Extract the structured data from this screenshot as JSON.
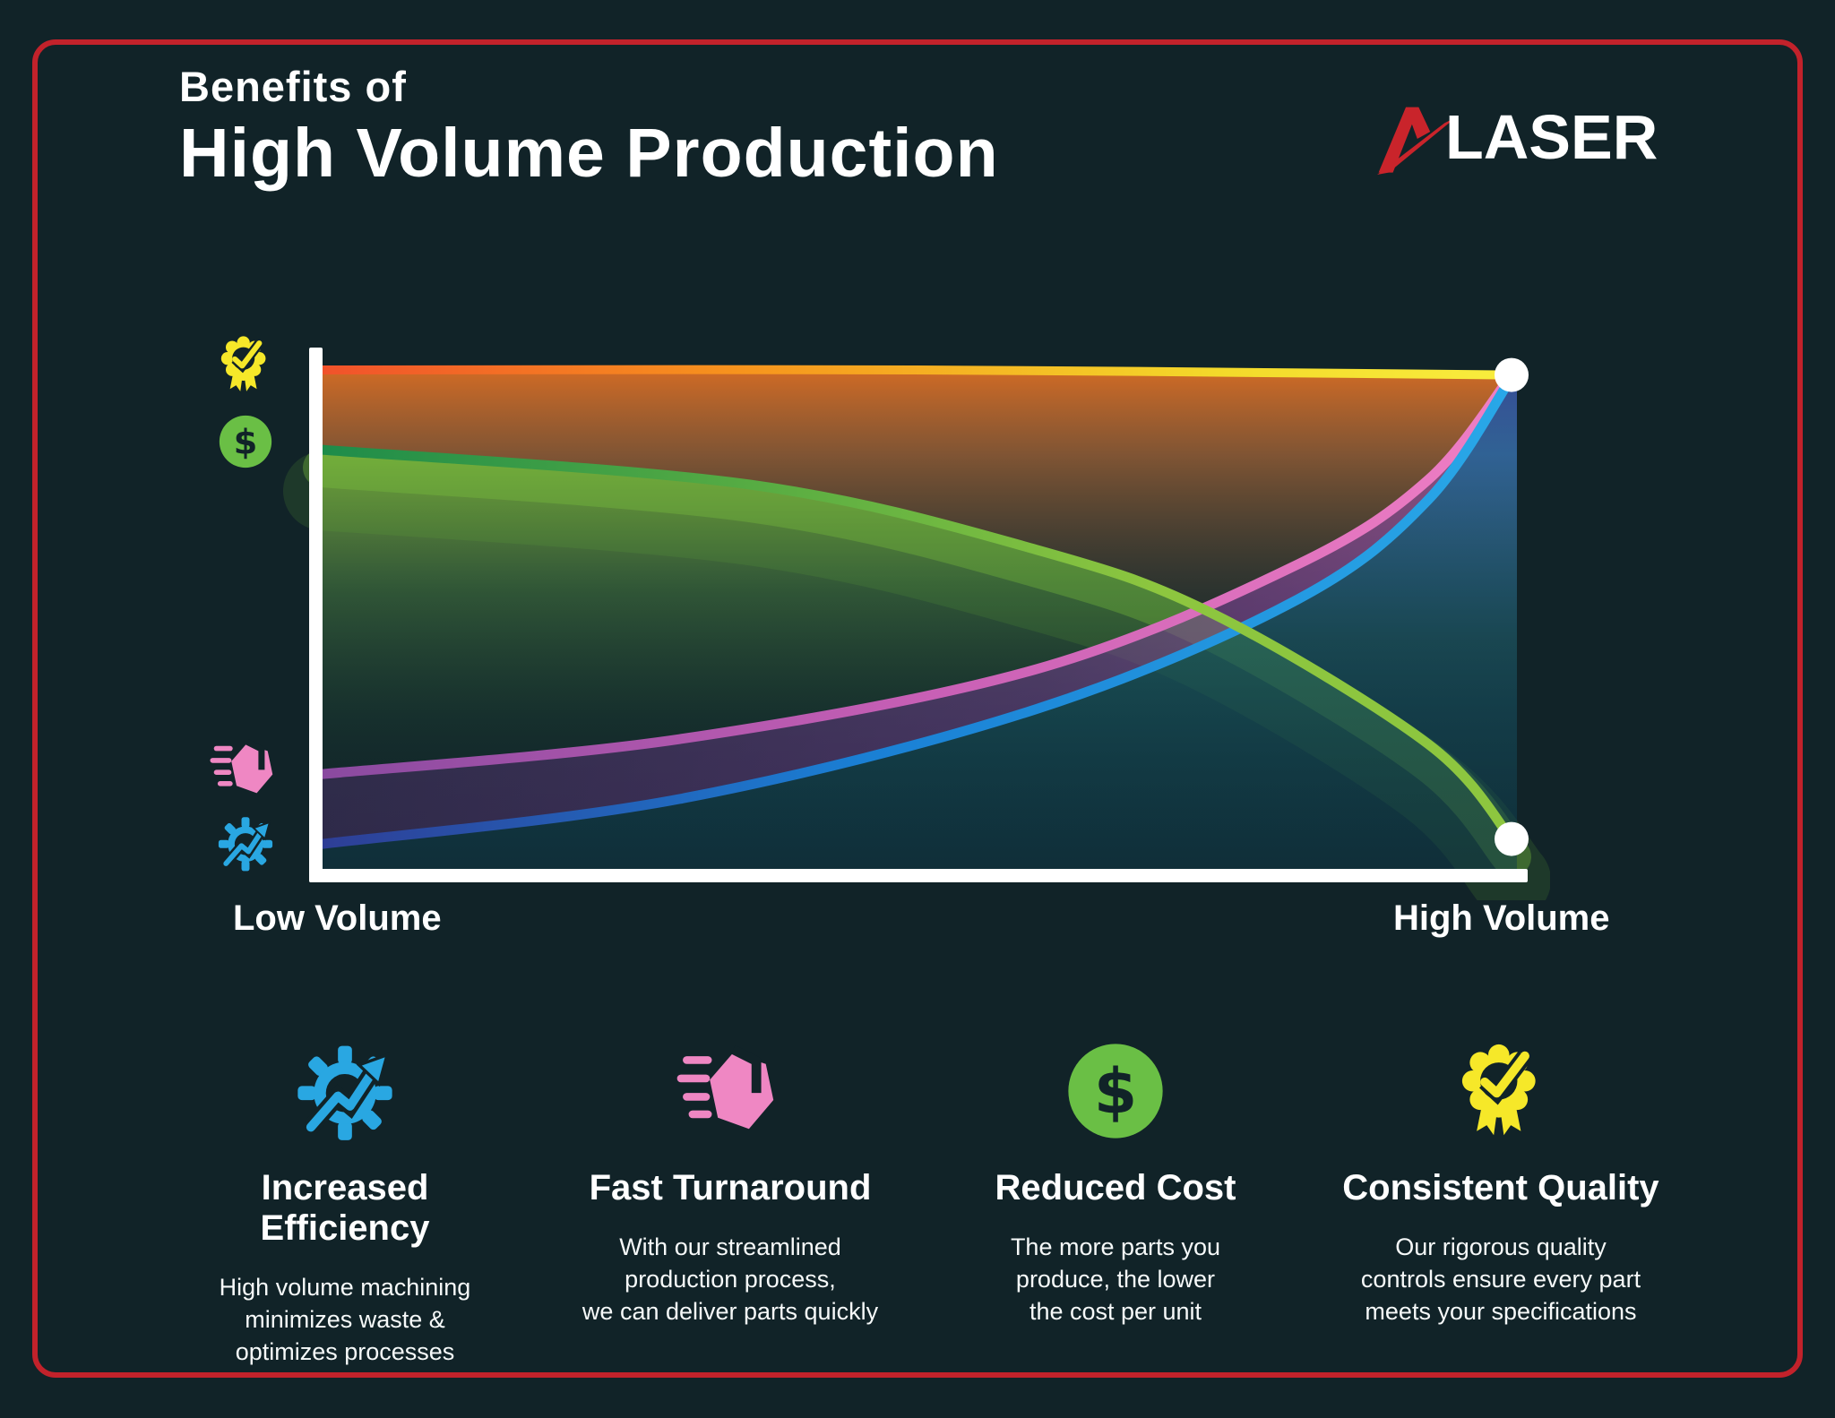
{
  "page": {
    "background": "#112328",
    "border_color": "#c2222b"
  },
  "header": {
    "title_line1": "Benefits of",
    "title_line2": "High Volume Production"
  },
  "logo": {
    "mark": "red-a-swoosh",
    "text": "LASER",
    "accent_color": "#c9242b",
    "text_color": "#ffffff"
  },
  "chart": {
    "y_axis_icons": [
      {
        "icon": "badge-icon",
        "series": "Consistent Quality",
        "color": "#f6e829"
      },
      {
        "icon": "dollar-icon",
        "series": "Reduced Cost",
        "color": "#6abf45"
      },
      {
        "icon": "fast-box-icon",
        "series": "Fast Turnaround",
        "color": "#ef87c3"
      },
      {
        "icon": "gear-icon",
        "series": "Increased Efficiency",
        "color": "#29a7e2"
      }
    ]
  },
  "chart_data": {
    "type": "line",
    "title": "Benefits of High Volume Production",
    "xlabel_left": "Low Volume",
    "xlabel_right": "High Volume",
    "x_range": [
      0,
      1
    ],
    "y_range": [
      0,
      100
    ],
    "grid": false,
    "legend_position": "icons-on-y-axis",
    "axis_color": "#ffffff",
    "marker_color": "#ffffff",
    "marker_radius": 19,
    "series": [
      {
        "id": "quality",
        "name": "Consistent Quality",
        "icon": "badge-icon",
        "trend": "flat-high",
        "points": [
          [
            0,
            100
          ],
          [
            0.5,
            100
          ],
          [
            1,
            99
          ]
        ],
        "stroke_width": 10,
        "stroke_stops": [
          [
            "0%",
            "#f1522b"
          ],
          [
            "35%",
            "#f7941d"
          ],
          [
            "75%",
            "#f3d92a"
          ],
          [
            "100%",
            "#f9ee3e"
          ]
        ],
        "fill": "under",
        "fill_stops": [
          [
            "0%",
            "rgba(233,115,35,0.92)"
          ],
          [
            "18%",
            "rgba(172,104,56,0.72)"
          ],
          [
            "45%",
            "rgba(96,82,60,0.34)"
          ],
          [
            "70%",
            "rgba(42,48,48,0.1)"
          ],
          [
            "100%",
            "rgba(20,35,40,0)"
          ]
        ],
        "end_marker": true
      },
      {
        "id": "cost",
        "name": "Reduced Cost",
        "icon": "dollar-icon",
        "trend": "decreasing",
        "points": [
          [
            0,
            84
          ],
          [
            0.36,
            77
          ],
          [
            0.6,
            64
          ],
          [
            0.75,
            51
          ],
          [
            0.93,
            25
          ],
          [
            1,
            6
          ]
        ],
        "stroke_width": 11,
        "stroke_stops": [
          [
            "0%",
            "#1e8c4a"
          ],
          [
            "35%",
            "#55ab43"
          ],
          [
            "70%",
            "#8dc63f"
          ],
          [
            "100%",
            "#8dc63f"
          ]
        ],
        "fill": "under",
        "fill_stops": [
          [
            "0%",
            "rgba(141,198,63,0.98)"
          ],
          [
            "14%",
            "rgba(118,185,60,0.88)"
          ],
          [
            "45%",
            "rgba(52,120,62,0.5)"
          ],
          [
            "78%",
            "rgba(25,72,56,0.16)"
          ],
          [
            "100%",
            "rgba(20,55,50,0)"
          ]
        ],
        "glow": true,
        "glow_colors": [
          "rgba(122,196,60,0.35)",
          "rgba(100,175,55,0.16)"
        ],
        "end_marker": true
      },
      {
        "id": "fast",
        "name": "Fast Turnaround",
        "icon": "fast-box-icon",
        "trend": "increasing",
        "points": [
          [
            0,
            19
          ],
          [
            0.3,
            26
          ],
          [
            0.6,
            40
          ],
          [
            0.82,
            61
          ],
          [
            0.93,
            78
          ],
          [
            1,
            99
          ]
        ],
        "stroke_width": 11,
        "stroke_stops": [
          [
            "0%",
            "#8a4aa0"
          ],
          [
            "50%",
            "#c75fb5"
          ],
          [
            "100%",
            "#f07fc4"
          ]
        ]
      },
      {
        "id": "efficiency",
        "name": "Increased Efficiency",
        "icon": "gear-icon",
        "trend": "increasing",
        "points": [
          [
            0,
            5
          ],
          [
            0.3,
            14
          ],
          [
            0.6,
            32
          ],
          [
            0.82,
            54
          ],
          [
            0.93,
            74
          ],
          [
            1,
            98.5
          ]
        ],
        "stroke_width": 11,
        "stroke_stops": [
          [
            "0%",
            "#2e3e96"
          ],
          [
            "45%",
            "#1a7fd4"
          ],
          [
            "100%",
            "#29a8e8"
          ]
        ],
        "fill": "under",
        "fill_stops": [
          [
            "0%",
            "rgba(40,70,160,0.92)"
          ],
          [
            "18%",
            "rgba(34,100,165,0.85)"
          ],
          [
            "55%",
            "rgba(22,84,100,0.66)"
          ],
          [
            "100%",
            "rgba(14,58,74,0.5)"
          ]
        ]
      }
    ],
    "band_fill": {
      "between": [
        "fast",
        "efficiency"
      ],
      "stops": [
        [
          "0%",
          "rgba(75,48,105,0.5)"
        ],
        [
          "60%",
          "rgba(112,60,140,0.55)"
        ],
        [
          "100%",
          "rgba(158,80,178,0.62)"
        ]
      ]
    }
  },
  "benefits": [
    {
      "icon": "gear-icon",
      "icon_color": "#29a7e2",
      "title": "Increased Efficiency",
      "description": "High volume machining\nminimizes waste &\noptimizes processes"
    },
    {
      "icon": "fast-box-icon",
      "icon_color": "#ef87c3",
      "title": "Fast Turnaround",
      "description": "With our streamlined\nproduction process,\nwe can deliver parts quickly"
    },
    {
      "icon": "dollar-icon",
      "icon_color": "#6abf45",
      "title": "Reduced Cost",
      "description": "The more parts you\nproduce, the lower\nthe cost per unit"
    },
    {
      "icon": "badge-icon",
      "icon_color": "#f6e829",
      "title": "Consistent Quality",
      "description": "Our rigorous quality\ncontrols ensure every part\nmeets your specifications"
    }
  ]
}
